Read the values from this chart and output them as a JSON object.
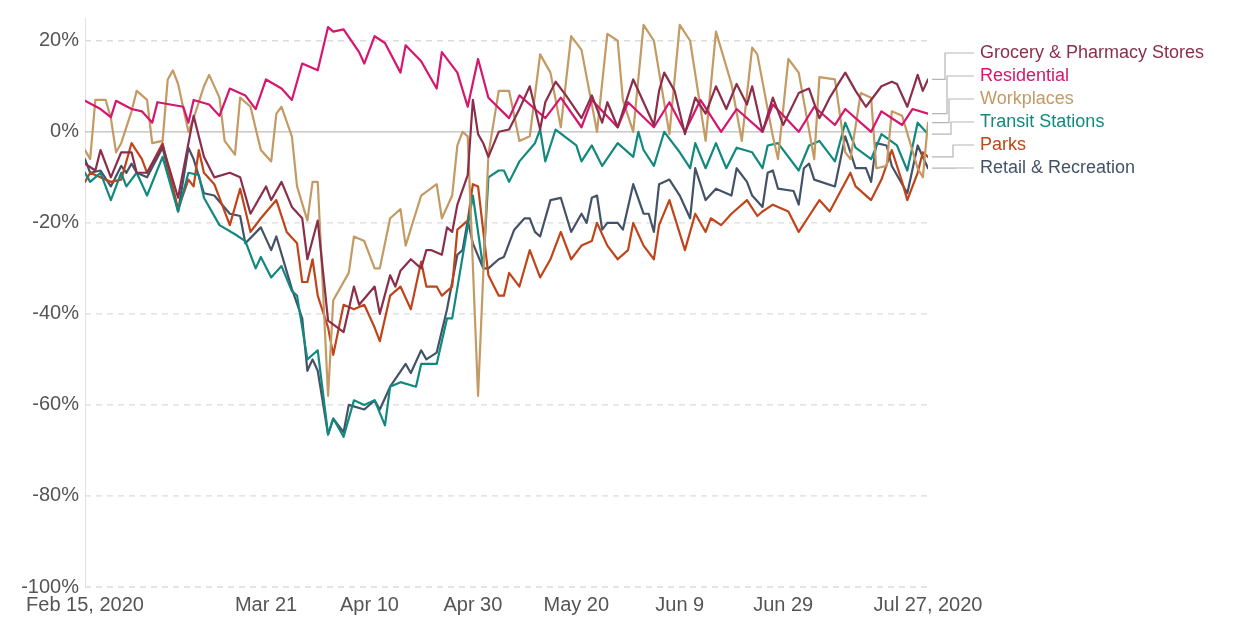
{
  "chart_data": {
    "type": "line",
    "xlim": [
      "2020-02-15",
      "2020-07-27"
    ],
    "ylim": [
      -100,
      25
    ],
    "xticks": [
      {
        "value": "2020-02-15",
        "label": "Feb 15, 2020"
      },
      {
        "value": "2020-03-21",
        "label": "Mar 21"
      },
      {
        "value": "2020-04-10",
        "label": "Apr 10"
      },
      {
        "value": "2020-04-30",
        "label": "Apr 30"
      },
      {
        "value": "2020-05-20",
        "label": "May 20"
      },
      {
        "value": "2020-06-09",
        "label": "Jun 9"
      },
      {
        "value": "2020-06-29",
        "label": "Jun 29"
      },
      {
        "value": "2020-07-27",
        "label": "Jul 27, 2020"
      }
    ],
    "yticks": [
      {
        "value": -100,
        "label": "-100%"
      },
      {
        "value": -80,
        "label": "-80%"
      },
      {
        "value": -60,
        "label": "-60%"
      },
      {
        "value": -40,
        "label": "-40%"
      },
      {
        "value": -20,
        "label": "-20%"
      },
      {
        "value": 0,
        "label": "0%"
      },
      {
        "value": 20,
        "label": "20%"
      }
    ],
    "grid": "y",
    "legend": "right",
    "marker": "none",
    "line_style": "solid",
    "series": [
      {
        "name": "Grocery & Pharmacy Stores",
        "color": "#8b2e4a",
        "x": [
          "2020-02-15",
          "2020-02-17",
          "2020-02-18",
          "2020-02-20",
          "2020-02-22",
          "2020-02-24",
          "2020-02-25",
          "2020-02-27",
          "2020-03-01",
          "2020-03-04",
          "2020-03-07",
          "2020-03-09",
          "2020-03-11",
          "2020-03-14",
          "2020-03-16",
          "2020-03-18",
          "2020-03-21",
          "2020-03-22",
          "2020-03-24",
          "2020-03-26",
          "2020-03-28",
          "2020-03-29",
          "2020-03-31",
          "2020-04-02",
          "2020-04-05",
          "2020-04-07",
          "2020-04-08",
          "2020-04-11",
          "2020-04-12",
          "2020-04-14",
          "2020-04-15",
          "2020-04-16",
          "2020-04-18",
          "2020-04-20",
          "2020-04-21",
          "2020-04-22",
          "2020-04-24",
          "2020-04-25",
          "2020-04-26",
          "2020-04-27",
          "2020-04-29",
          "2020-04-30",
          "2020-05-01",
          "2020-05-02",
          "2020-05-03",
          "2020-05-05",
          "2020-05-07",
          "2020-05-09",
          "2020-05-11",
          "2020-05-13",
          "2020-05-14",
          "2020-05-16",
          "2020-05-18",
          "2020-05-21",
          "2020-05-23",
          "2020-05-25",
          "2020-05-26",
          "2020-05-28",
          "2020-05-31",
          "2020-06-02",
          "2020-06-04",
          "2020-06-05",
          "2020-06-06",
          "2020-06-08",
          "2020-06-10",
          "2020-06-12",
          "2020-06-14",
          "2020-06-16",
          "2020-06-18",
          "2020-06-20",
          "2020-06-22",
          "2020-06-23",
          "2020-06-25",
          "2020-06-27",
          "2020-06-29",
          "2020-07-02",
          "2020-07-04",
          "2020-07-06",
          "2020-07-08",
          "2020-07-11",
          "2020-07-13",
          "2020-07-15",
          "2020-07-18",
          "2020-07-20",
          "2020-07-21",
          "2020-07-23",
          "2020-07-25",
          "2020-07-26",
          "2020-07-27"
        ],
        "values": [
          -7,
          -8.5,
          -4,
          -10,
          -4.5,
          -4.5,
          -9,
          -9,
          -3,
          -14.5,
          3.5,
          -5.5,
          -10,
          -9,
          -10,
          -18,
          -12,
          -15,
          -11,
          -16.5,
          -19,
          -28,
          -19.5,
          -41.5,
          -44,
          -34,
          -38,
          -34,
          -40,
          -31.5,
          -34,
          -30.5,
          -28,
          -30,
          -26,
          -26,
          -27,
          -21,
          -22,
          -16,
          -9.5,
          7,
          -0.5,
          -2.5,
          -5.5,
          0,
          0.5,
          5,
          10,
          0.5,
          6.5,
          11,
          8,
          3,
          8,
          2,
          6.5,
          1,
          11.5,
          6.5,
          1.5,
          9,
          13,
          9,
          -0.5,
          7.5,
          4,
          10,
          5,
          10.5,
          6,
          10,
          0,
          7.5,
          1.5,
          8.5,
          9.5,
          3,
          7.5,
          13,
          9,
          5.5,
          10,
          11,
          10.5,
          5.5,
          12.5,
          9,
          11.5
        ]
      },
      {
        "name": "Residential",
        "color": "#d6166e",
        "x": [
          "2020-02-15",
          "2020-02-18",
          "2020-02-20",
          "2020-02-21",
          "2020-02-24",
          "2020-02-26",
          "2020-02-28",
          "2020-02-29",
          "2020-03-05",
          "2020-03-06",
          "2020-03-07",
          "2020-03-10",
          "2020-03-12",
          "2020-03-14",
          "2020-03-17",
          "2020-03-19",
          "2020-03-21",
          "2020-03-24",
          "2020-03-26",
          "2020-03-28",
          "2020-03-31",
          "2020-04-02",
          "2020-04-03",
          "2020-04-05",
          "2020-04-08",
          "2020-04-09",
          "2020-04-11",
          "2020-04-13",
          "2020-04-16",
          "2020-04-17",
          "2020-04-20",
          "2020-04-23",
          "2020-04-24",
          "2020-04-27",
          "2020-04-29",
          "2020-05-01",
          "2020-05-03",
          "2020-05-07",
          "2020-05-09",
          "2020-05-12",
          "2020-05-14",
          "2020-05-17",
          "2020-05-21",
          "2020-05-23",
          "2020-05-28",
          "2020-05-30",
          "2020-06-04",
          "2020-06-07",
          "2020-06-10",
          "2020-06-13",
          "2020-06-17",
          "2020-06-20",
          "2020-06-25",
          "2020-06-27",
          "2020-07-02",
          "2020-07-05",
          "2020-07-09",
          "2020-07-11",
          "2020-07-16",
          "2020-07-18",
          "2020-07-22",
          "2020-07-24",
          "2020-07-27"
        ],
        "values": [
          6.8,
          5,
          3.2,
          6.8,
          5,
          4.5,
          2,
          6.5,
          5.5,
          2,
          7,
          6,
          3.5,
          9.5,
          8,
          5,
          11.5,
          9.5,
          7,
          15,
          13.5,
          23,
          22,
          22.5,
          17.5,
          15,
          21,
          19.5,
          13,
          19,
          15.5,
          9.5,
          17.5,
          13,
          5.5,
          16,
          7.5,
          3,
          8,
          5,
          3,
          7.5,
          1,
          7,
          1,
          6.5,
          1,
          6.5,
          0,
          7,
          0,
          5,
          0,
          6,
          0,
          5.5,
          1.5,
          5,
          0,
          4.5,
          1.5,
          5,
          4
        ]
      },
      {
        "name": "Workplaces",
        "color": "#c49a64",
        "x": [
          "2020-02-15",
          "2020-02-16",
          "2020-02-17",
          "2020-02-19",
          "2020-02-20",
          "2020-02-21",
          "2020-02-22",
          "2020-02-24",
          "2020-02-25",
          "2020-02-27",
          "2020-02-28",
          "2020-03-01",
          "2020-03-02",
          "2020-03-03",
          "2020-03-04",
          "2020-03-06",
          "2020-03-07",
          "2020-03-09",
          "2020-03-10",
          "2020-03-12",
          "2020-03-13",
          "2020-03-15",
          "2020-03-16",
          "2020-03-18",
          "2020-03-20",
          "2020-03-22",
          "2020-03-23",
          "2020-03-24",
          "2020-03-26",
          "2020-03-27",
          "2020-03-29",
          "2020-03-30",
          "2020-03-31",
          "2020-04-02",
          "2020-04-03",
          "2020-04-06",
          "2020-04-07",
          "2020-04-09",
          "2020-04-11",
          "2020-04-12",
          "2020-04-14",
          "2020-04-16",
          "2020-04-17",
          "2020-04-20",
          "2020-04-23",
          "2020-04-24",
          "2020-04-26",
          "2020-04-27",
          "2020-04-28",
          "2020-04-29",
          "2020-05-01",
          "2020-05-03",
          "2020-05-05",
          "2020-05-07",
          "2020-05-09",
          "2020-05-11",
          "2020-05-13",
          "2020-05-15",
          "2020-05-17",
          "2020-05-19",
          "2020-05-21",
          "2020-05-24",
          "2020-05-26",
          "2020-05-28",
          "2020-05-29",
          "2020-05-31",
          "2020-06-02",
          "2020-06-04",
          "2020-06-07",
          "2020-06-09",
          "2020-06-11",
          "2020-06-14",
          "2020-06-16",
          "2020-06-19",
          "2020-06-21",
          "2020-06-23",
          "2020-06-24",
          "2020-06-27",
          "2020-06-28",
          "2020-06-30",
          "2020-07-02",
          "2020-07-05",
          "2020-07-06",
          "2020-07-09",
          "2020-07-11",
          "2020-07-12",
          "2020-07-14",
          "2020-07-16",
          "2020-07-17",
          "2020-07-19",
          "2020-07-20",
          "2020-07-22",
          "2020-07-25",
          "2020-07-26",
          "2020-07-27"
        ],
        "values": [
          -4,
          -6,
          7,
          7,
          3,
          -4.5,
          -2.5,
          4.5,
          9,
          7,
          -2.5,
          -2,
          11.5,
          13.5,
          10.5,
          0,
          3,
          10,
          12.5,
          7.5,
          -2,
          -5,
          7.5,
          5.5,
          -4,
          -6.5,
          4,
          5.5,
          -1,
          -12,
          -19.5,
          -11,
          -11,
          -58,
          -37,
          -31,
          -23,
          -24,
          -30,
          -30,
          -19,
          -17,
          -25,
          -14,
          -11.5,
          -19,
          -14,
          -3,
          0,
          -1,
          -58,
          -5,
          9,
          9,
          -2,
          -1,
          17,
          13,
          1,
          21,
          18,
          0,
          21.5,
          20,
          7,
          0,
          23.5,
          20,
          -0.5,
          23.5,
          20,
          -2,
          22,
          10.5,
          -2,
          18.5,
          17,
          -1,
          -6,
          16,
          13,
          -6,
          12,
          11.5,
          -4.5,
          -6,
          8.5,
          7.5,
          -8,
          -7.5,
          4.5,
          3.5,
          -8,
          -10,
          2
        ]
      },
      {
        "name": "Transit Stations",
        "color": "#12897f",
        "x": [
          "2020-02-15",
          "2020-02-16",
          "2020-02-18",
          "2020-02-20",
          "2020-02-22",
          "2020-02-23",
          "2020-02-25",
          "2020-02-27",
          "2020-03-01",
          "2020-03-04",
          "2020-03-06",
          "2020-03-08",
          "2020-03-09",
          "2020-03-12",
          "2020-03-15",
          "2020-03-17",
          "2020-03-19",
          "2020-03-20",
          "2020-03-22",
          "2020-03-24",
          "2020-03-26",
          "2020-03-27",
          "2020-03-29",
          "2020-03-31",
          "2020-04-02",
          "2020-04-03",
          "2020-04-05",
          "2020-04-07",
          "2020-04-09",
          "2020-04-11",
          "2020-04-13",
          "2020-04-14",
          "2020-04-16",
          "2020-04-19",
          "2020-04-20",
          "2020-04-23",
          "2020-04-25",
          "2020-04-26",
          "2020-04-30",
          "2020-05-02",
          "2020-05-03",
          "2020-05-05",
          "2020-05-06",
          "2020-05-07",
          "2020-05-09",
          "2020-05-12",
          "2020-05-13",
          "2020-05-14",
          "2020-05-16",
          "2020-05-20",
          "2020-05-21",
          "2020-05-23",
          "2020-05-25",
          "2020-05-28",
          "2020-05-31",
          "2020-06-01",
          "2020-06-02",
          "2020-06-04",
          "2020-06-06",
          "2020-06-09",
          "2020-06-11",
          "2020-06-12",
          "2020-06-14",
          "2020-06-16",
          "2020-06-18",
          "2020-06-20",
          "2020-06-23",
          "2020-06-25",
          "2020-06-26",
          "2020-06-28",
          "2020-07-02",
          "2020-07-04",
          "2020-07-06",
          "2020-07-09",
          "2020-07-11",
          "2020-07-13",
          "2020-07-16",
          "2020-07-18",
          "2020-07-21",
          "2020-07-23",
          "2020-07-25",
          "2020-07-27"
        ],
        "values": [
          -9,
          -11,
          -9,
          -15,
          -9,
          -12,
          -9,
          -14,
          -5.5,
          -17.5,
          -9,
          -9.5,
          -14.5,
          -20.5,
          -22.5,
          -24,
          -30,
          -27.5,
          -32,
          -29.5,
          -35,
          -36,
          -50,
          -48,
          -66.5,
          -63,
          -67,
          -59,
          -60,
          -59,
          -64.5,
          -56,
          -55,
          -56,
          -51,
          -51,
          -41,
          -41,
          -14,
          -30,
          -10,
          -8.5,
          -8.5,
          -11,
          -6.5,
          -2.5,
          0.5,
          -6.5,
          0.5,
          -3,
          -6.5,
          -3,
          -7.5,
          -2.5,
          -5.5,
          0,
          -4,
          -7.5,
          0,
          -4.5,
          -8,
          -2.5,
          -8,
          -2.5,
          -8,
          -3.5,
          -4.5,
          -8,
          -3,
          -2.5,
          -8.5,
          -3,
          -2,
          -6.5,
          2,
          -3.5,
          -6,
          -0.5,
          -3,
          -8.5,
          2,
          -0.5
        ]
      },
      {
        "name": "Parks",
        "color": "#c0441a",
        "x": [
          "2020-02-15",
          "2020-02-16",
          "2020-02-20",
          "2020-02-22",
          "2020-02-24",
          "2020-02-26",
          "2020-02-27",
          "2020-03-01",
          "2020-03-04",
          "2020-03-06",
          "2020-03-07",
          "2020-03-08",
          "2020-03-09",
          "2020-03-11",
          "2020-03-14",
          "2020-03-16",
          "2020-03-18",
          "2020-03-20",
          "2020-03-23",
          "2020-03-25",
          "2020-03-27",
          "2020-03-28",
          "2020-03-29",
          "2020-03-30",
          "2020-03-31",
          "2020-04-02",
          "2020-04-03",
          "2020-04-05",
          "2020-04-07",
          "2020-04-09",
          "2020-04-11",
          "2020-04-12",
          "2020-04-14",
          "2020-04-16",
          "2020-04-18",
          "2020-04-20",
          "2020-04-21",
          "2020-04-23",
          "2020-04-24",
          "2020-04-26",
          "2020-04-27",
          "2020-04-29",
          "2020-04-30",
          "2020-05-01",
          "2020-05-03",
          "2020-05-05",
          "2020-05-06",
          "2020-05-07",
          "2020-05-09",
          "2020-05-11",
          "2020-05-13",
          "2020-05-15",
          "2020-05-17",
          "2020-05-19",
          "2020-05-21",
          "2020-05-23",
          "2020-05-24",
          "2020-05-26",
          "2020-05-28",
          "2020-05-30",
          "2020-05-31",
          "2020-06-02",
          "2020-06-04",
          "2020-06-05",
          "2020-06-07",
          "2020-06-10",
          "2020-06-12",
          "2020-06-14",
          "2020-06-15",
          "2020-06-17",
          "2020-06-19",
          "2020-06-22",
          "2020-06-24",
          "2020-06-25",
          "2020-06-27",
          "2020-06-30",
          "2020-07-02",
          "2020-07-04",
          "2020-07-06",
          "2020-07-08",
          "2020-07-12",
          "2020-07-13",
          "2020-07-16",
          "2020-07-18",
          "2020-07-20",
          "2020-07-22",
          "2020-07-23",
          "2020-07-25",
          "2020-07-26",
          "2020-07-27"
        ],
        "values": [
          -11,
          -9,
          -11,
          -10.5,
          -2.5,
          -6,
          -9,
          -2.5,
          -17,
          -10.5,
          -12,
          -4,
          -9,
          -11.5,
          -20.5,
          -12.5,
          -22,
          -19,
          -15,
          -22,
          -24.5,
          -33,
          -33,
          -28,
          -36,
          -43,
          -49,
          -38,
          -39,
          -38,
          -43,
          -46,
          -36,
          -34,
          -39,
          -28.5,
          -34,
          -34,
          -36,
          -34,
          -21.5,
          -19.5,
          -11.5,
          -12,
          -31.5,
          -36,
          -36,
          -31,
          -34,
          -26,
          -32,
          -28,
          -22,
          -28,
          -25,
          -24,
          -20,
          -25,
          -28,
          -26,
          -20,
          -25,
          -28,
          -20.5,
          -15,
          -26,
          -18,
          -22,
          -19,
          -20.5,
          -18,
          -15,
          -18.5,
          -17.5,
          -16,
          -17.5,
          -22,
          -18.5,
          -15,
          -17.5,
          -9,
          -12,
          -15,
          -10.5,
          -4,
          -11,
          -15,
          -9,
          -4.5,
          -5.5
        ]
      },
      {
        "name": "Retail & Recreation",
        "color": "#445268",
        "x": [
          "2020-02-15",
          "2020-02-16",
          "2020-02-18",
          "2020-02-20",
          "2020-02-22",
          "2020-02-23",
          "2020-02-24",
          "2020-02-25",
          "2020-02-27",
          "2020-03-01",
          "2020-03-04",
          "2020-03-06",
          "2020-03-07",
          "2020-03-09",
          "2020-03-11",
          "2020-03-14",
          "2020-03-16",
          "2020-03-17",
          "2020-03-20",
          "2020-03-22",
          "2020-03-23",
          "2020-03-26",
          "2020-03-28",
          "2020-03-29",
          "2020-03-30",
          "2020-03-31",
          "2020-04-02",
          "2020-04-03",
          "2020-04-05",
          "2020-04-06",
          "2020-04-09",
          "2020-04-11",
          "2020-04-12",
          "2020-04-14",
          "2020-04-17",
          "2020-04-18",
          "2020-04-20",
          "2020-04-21",
          "2020-04-23",
          "2020-04-25",
          "2020-04-27",
          "2020-04-28",
          "2020-04-29",
          "2020-04-30",
          "2020-05-02",
          "2020-05-03",
          "2020-05-05",
          "2020-05-06",
          "2020-05-08",
          "2020-05-10",
          "2020-05-11",
          "2020-05-12",
          "2020-05-13",
          "2020-05-15",
          "2020-05-17",
          "2020-05-19",
          "2020-05-21",
          "2020-05-22",
          "2020-05-23",
          "2020-05-24",
          "2020-05-25",
          "2020-05-26",
          "2020-05-28",
          "2020-05-29",
          "2020-05-31",
          "2020-06-02",
          "2020-06-03",
          "2020-06-04",
          "2020-06-05",
          "2020-06-07",
          "2020-06-09",
          "2020-06-11",
          "2020-06-12",
          "2020-06-14",
          "2020-06-16",
          "2020-06-19",
          "2020-06-20",
          "2020-06-22",
          "2020-06-23",
          "2020-06-25",
          "2020-06-26",
          "2020-06-27",
          "2020-06-28",
          "2020-07-01",
          "2020-07-02",
          "2020-07-03",
          "2020-07-04",
          "2020-07-05",
          "2020-07-09",
          "2020-07-11",
          "2020-07-13",
          "2020-07-15",
          "2020-07-16",
          "2020-07-17",
          "2020-07-19",
          "2020-07-20",
          "2020-07-23",
          "2020-07-25",
          "2020-07-27"
        ],
        "values": [
          -6,
          -9,
          -8.5,
          -12,
          -7.5,
          -9,
          -7,
          -9,
          -10,
          -3.5,
          -17.5,
          -3.5,
          -6,
          -13.5,
          -14,
          -18,
          -18.5,
          -24.5,
          -21,
          -26,
          -23,
          -34.5,
          -41,
          -52.5,
          -50,
          -52.5,
          -66.5,
          -63,
          -66,
          -60,
          -61,
          -59,
          -61,
          -56,
          -51,
          -53,
          -48,
          -50,
          -48.5,
          -39,
          -27,
          -26,
          -19.5,
          -24.5,
          -30,
          -30,
          -28,
          -27.5,
          -21.5,
          -19,
          -19,
          -22,
          -23,
          -15,
          -14.5,
          -22,
          -18,
          -20,
          -14.5,
          -14,
          -21.5,
          -20,
          -20,
          -21.5,
          -11.5,
          -18,
          -18,
          -22,
          -11.5,
          -10.5,
          -14,
          -19,
          -8,
          -15,
          -12.5,
          -14,
          -8,
          -11,
          -14,
          -16.5,
          -9,
          -8.5,
          -12.5,
          -13,
          -16,
          -8,
          -7,
          -10.5,
          -12,
          -1,
          -8,
          -8,
          -11,
          -2.5,
          -3,
          -7.5,
          -13.5,
          -3,
          -8
        ]
      }
    ]
  }
}
